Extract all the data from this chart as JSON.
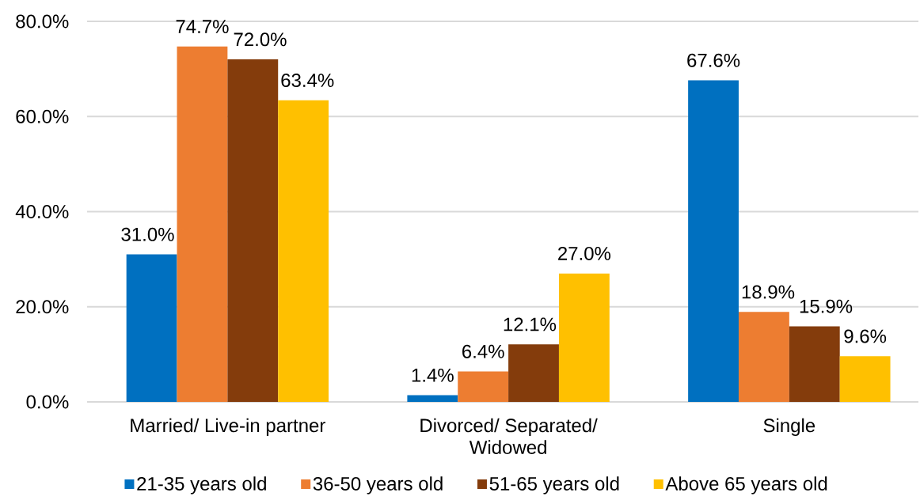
{
  "chart_data": {
    "type": "bar",
    "categories": [
      "Married/ Live-in partner",
      "Divorced/ Separated/ Widowed",
      "Single"
    ],
    "series": [
      {
        "name": "21-35 years old",
        "color": "#0070c0",
        "values": [
          31.0,
          1.4,
          67.6
        ],
        "value_labels": [
          "31.0%",
          "1.4%",
          "67.6%"
        ]
      },
      {
        "name": "36-50 years old",
        "color": "#ed7d31",
        "values": [
          74.7,
          6.4,
          18.9
        ],
        "value_labels": [
          "74.7%",
          "6.4%",
          "18.9%"
        ]
      },
      {
        "name": "51-65 years old",
        "color": "#843c0c",
        "values": [
          72.0,
          12.1,
          15.9
        ],
        "value_labels": [
          "72.0%",
          "12.1%",
          "15.9%"
        ]
      },
      {
        "name": "Above 65 years old",
        "color": "#ffc000",
        "values": [
          63.4,
          27.0,
          9.6
        ],
        "value_labels": [
          "63.4%",
          "27.0%",
          "9.6%"
        ]
      }
    ],
    "ylim": [
      0,
      80
    ],
    "yticks": [
      {
        "value": 0,
        "label": "0.0%"
      },
      {
        "value": 20,
        "label": "20.0%"
      },
      {
        "value": 40,
        "label": "40.0%"
      },
      {
        "value": 60,
        "label": "60.0%"
      },
      {
        "value": 80,
        "label": "80.0%"
      }
    ],
    "grid": "y",
    "legend": "bottom"
  }
}
